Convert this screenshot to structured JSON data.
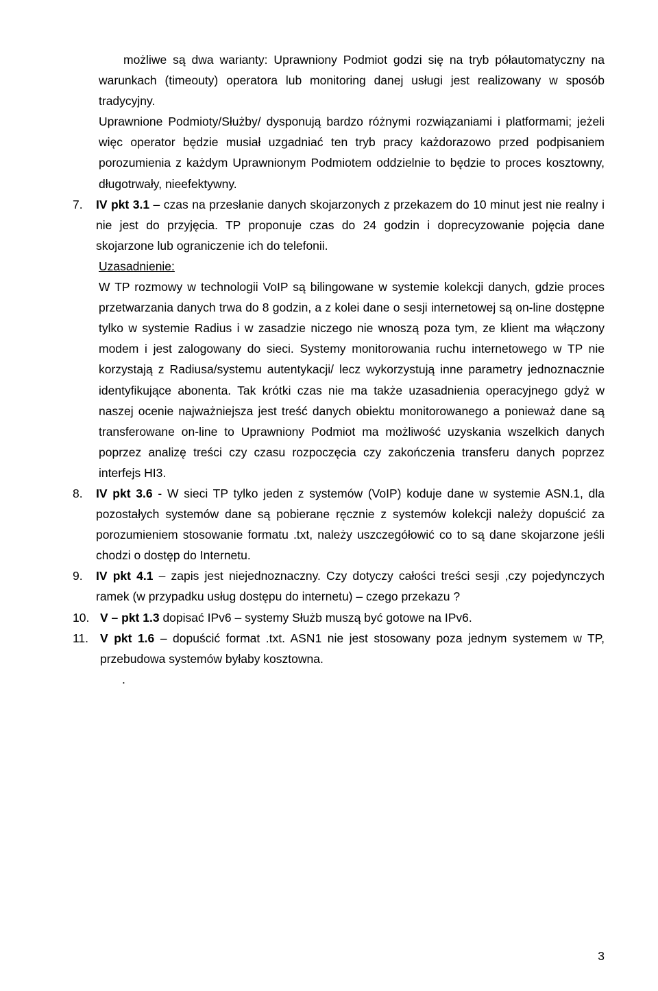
{
  "para_opening": "możliwe są dwa warianty: Uprawniony Podmiot godzi się na tryb półautomatyczny na warunkach (timeouty) operatora lub monitoring danej usługi jest realizowany w sposób tradycyjny.",
  "para_upper": "Uprawnione Podmioty/Służby/ dysponują bardzo różnymi rozwiązaniami i platformami; jeżeli więc operator będzie musiał uzgadniać ten tryb pracy każdorazowo przed podpisaniem porozumienia z każdym Uprawnionym Podmiotem oddzielnie to będzie to proces kosztowny, długotrwały, nieefektywny.",
  "item7": {
    "num": "7.",
    "label": "IV pkt 3.1",
    "text_after": " – czas na przesłanie danych skojarzonych z przekazem do 10 minut jest nie realny i nie jest do przyjęcia. TP proponuje czas do 24 godzin i doprecyzowanie pojęcia dane skojarzone lub ograniczenie ich do telefonii.",
    "uzas_label": "Uzasadnienie:",
    "uzas_text": "W TP rozmowy w technologii VoIP są bilingowane w systemie kolekcji danych, gdzie proces przetwarzania danych trwa do 8 godzin, a z kolei dane o sesji internetowej są on-line dostępne tylko w systemie Radius i w zasadzie niczego nie wnoszą poza tym, ze klient ma włączony modem i jest zalogowany do sieci. Systemy monitorowania ruchu internetowego w TP nie korzystają z Radiusa/systemu autentykacji/ lecz wykorzystują inne parametry jednoznacznie identyfikujące abonenta. Tak krótki czas nie ma także uzasadnienia operacyjnego gdyż w naszej ocenie najważniejsza jest treść danych obiektu monitorowanego a ponieważ dane są transferowane on-line to Uprawniony Podmiot ma możliwość uzyskania wszelkich danych poprzez analizę treści czy czasu rozpoczęcia czy zakończenia transferu danych poprzez interfejs HI3."
  },
  "item8": {
    "num": "8.",
    "label": "IV pkt 3.6",
    "text_after": " - W sieci TP tylko jeden z systemów (VoIP) koduje dane w systemie ASN.1, dla pozostałych systemów dane są pobierane ręcznie z systemów kolekcji należy dopuścić za porozumieniem stosowanie formatu .txt, należy uszczegółowić co to są dane skojarzone jeśli chodzi o dostęp do Internetu."
  },
  "item9": {
    "num": "9.",
    "label": "IV pkt 4.1",
    "text_after": " – zapis jest niejednoznaczny. Czy dotyczy całości treści sesji ,czy pojedynczych ramek (w przypadku usług dostępu do internetu) – czego przekazu ?"
  },
  "item10": {
    "num": "10.",
    "label": "V – pkt 1.3",
    "text_after": " dopisać IPv6 – systemy Służb muszą być gotowe na IPv6."
  },
  "item11": {
    "num": "11.",
    "label": "V pkt 1.6",
    "text_after": " – dopuścić format .txt. ASN1 nie jest stosowany poza jednym systemem w TP, przebudowa systemów byłaby kosztowna."
  },
  "dot": ".",
  "page_number": "3"
}
